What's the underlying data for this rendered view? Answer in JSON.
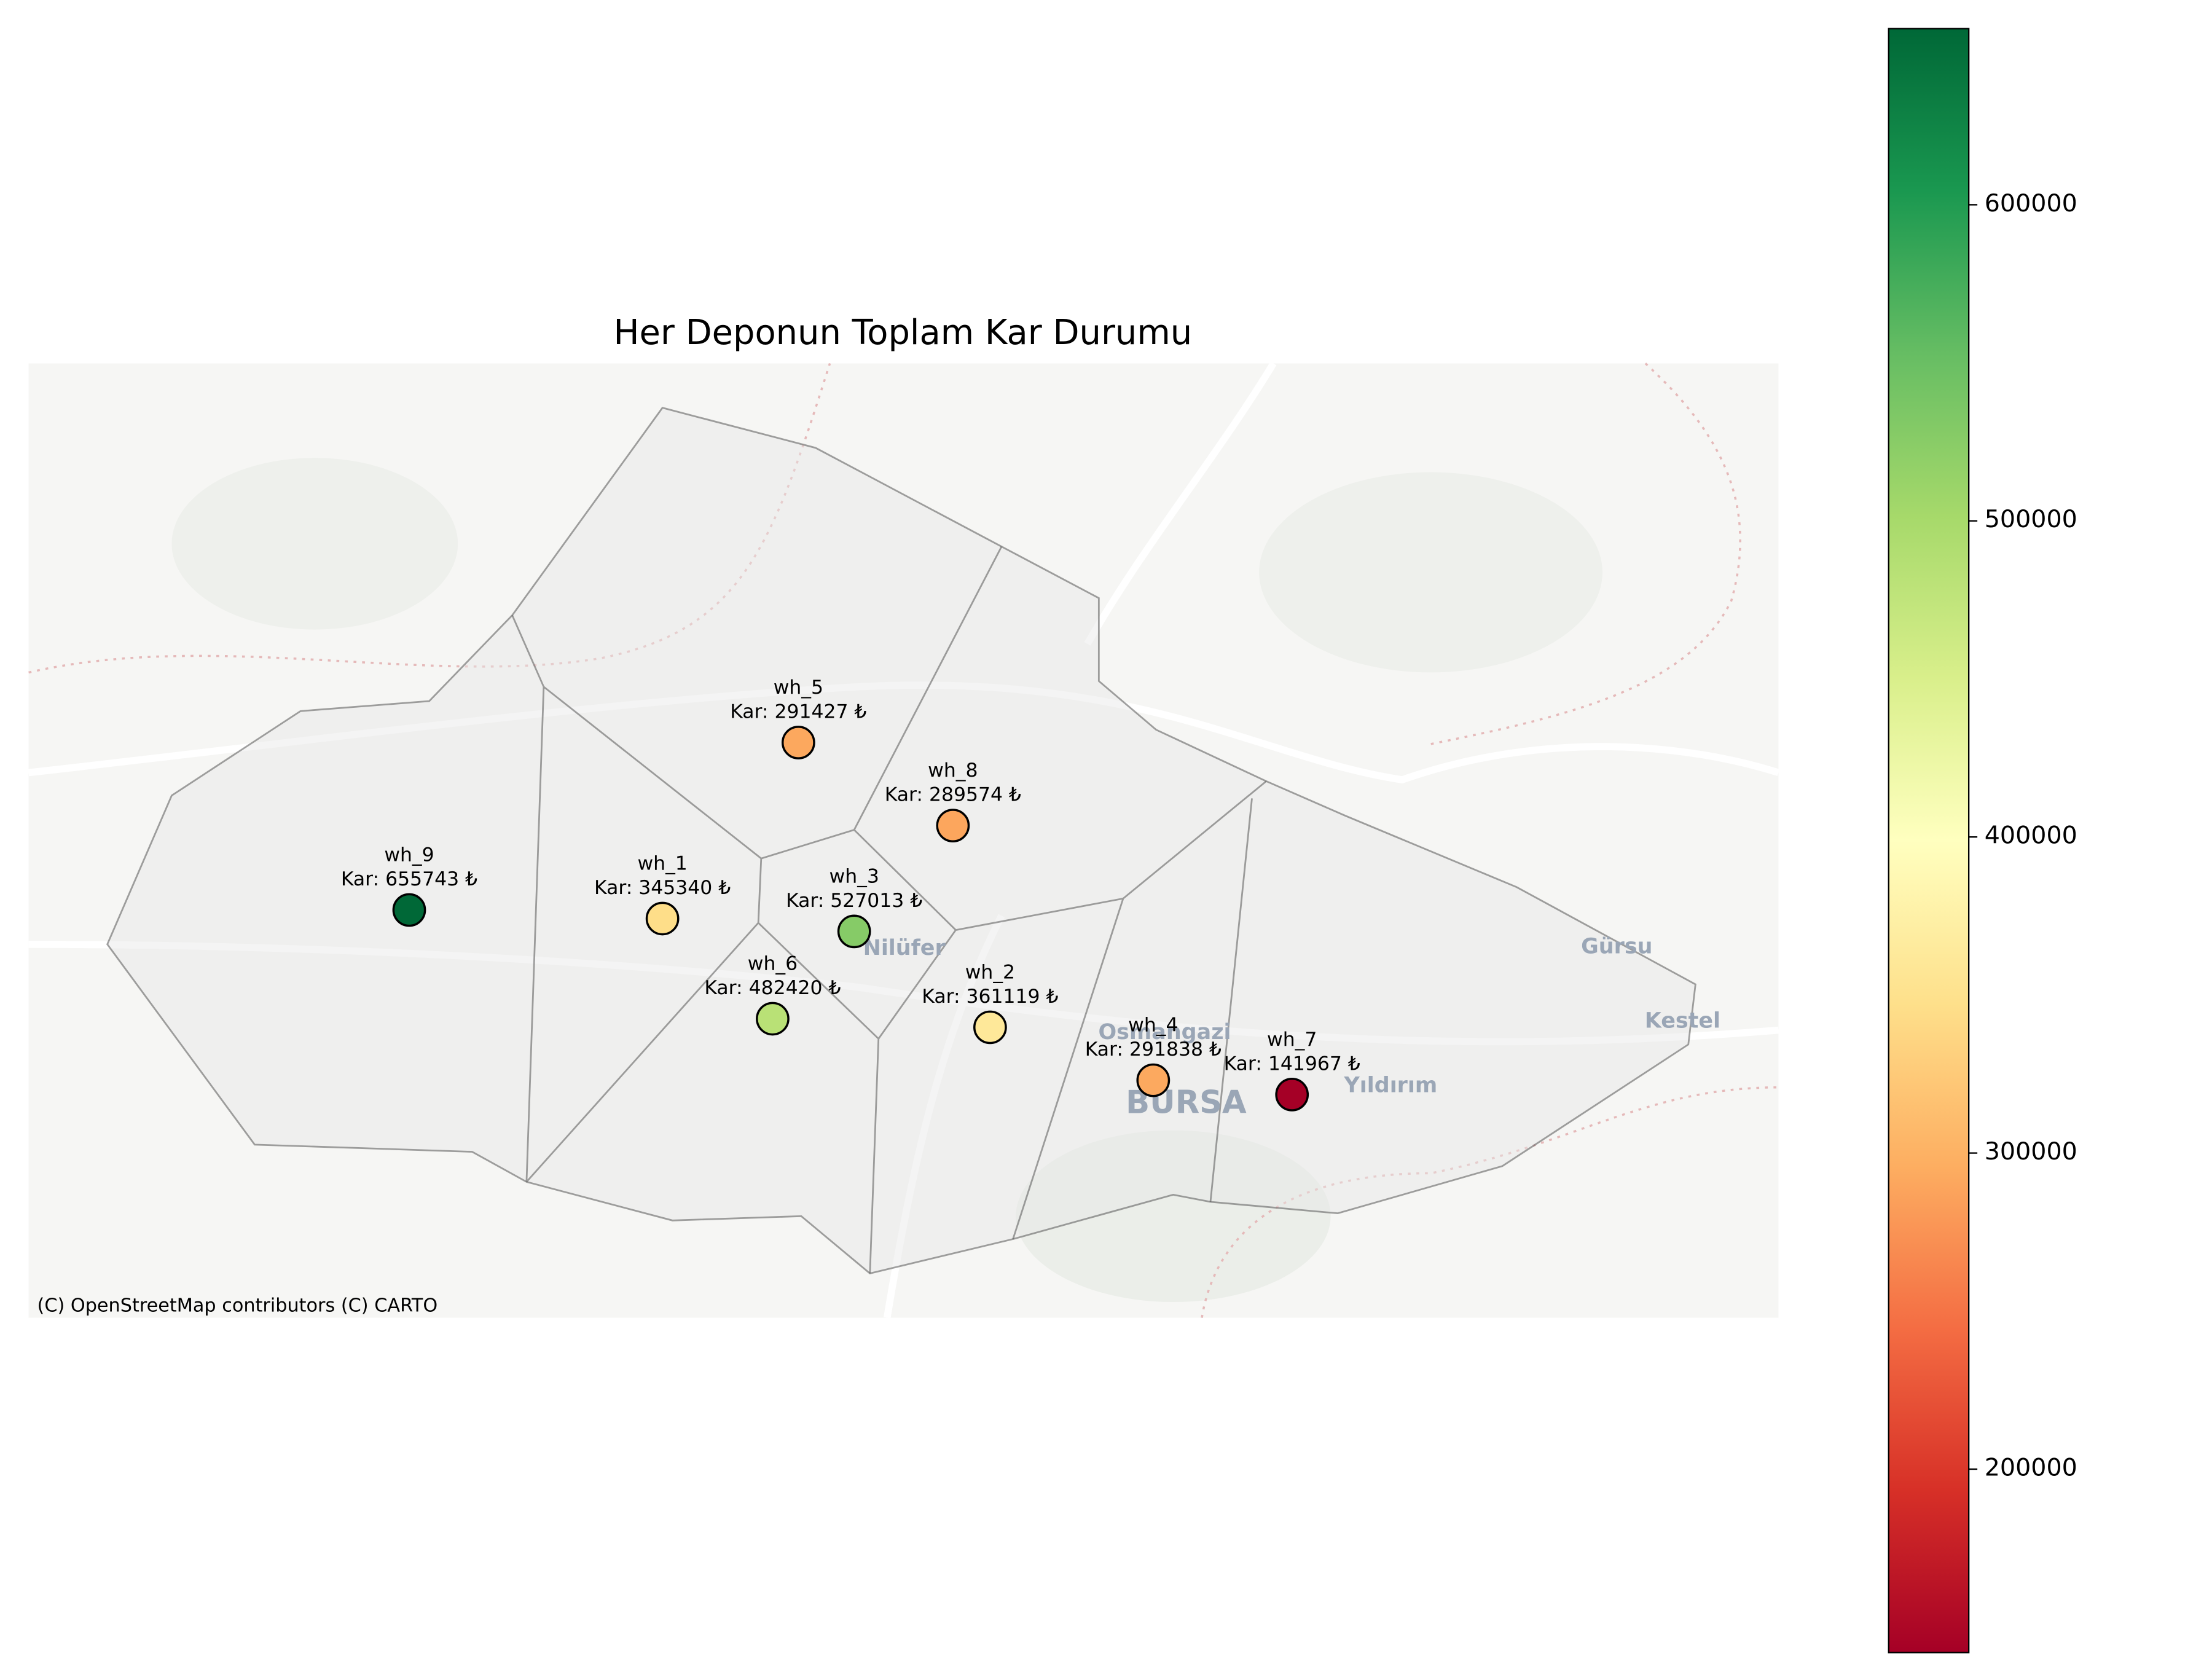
{
  "chart_data": {
    "type": "map",
    "title": "Her Deponun Toplam Kar Durumu",
    "names": [
      "wh_1",
      "wh_2",
      "wh_3",
      "wh_4",
      "wh_5",
      "wh_6",
      "wh_7",
      "wh_8",
      "wh_9"
    ],
    "values": [
      345340,
      361119,
      527013,
      291838,
      291427,
      482420,
      141967,
      289574,
      655743
    ],
    "value_labels": [
      "Kar: 345340 ₺",
      "Kar: 361119 ₺",
      "Kar: 527013 ₺",
      "Kar: 291838 ₺",
      "Kar: 291427 ₺",
      "Kar: 482420 ₺",
      "Kar: 141967 ₺",
      "Kar: 289574 ₺",
      "Kar: 655743 ₺"
    ],
    "colormap": "RdYlGn",
    "clim": [
      141967,
      655743
    ],
    "cticks": [
      200000,
      300000,
      400000,
      500000,
      600000
    ],
    "place_labels": [
      "Nilüfer",
      "Osmangazi",
      "BURSA",
      "Yıldırım",
      "Gürsu",
      "Kestel"
    ],
    "attribution": "(C) OpenStreetMap contributors (C) CARTO"
  }
}
